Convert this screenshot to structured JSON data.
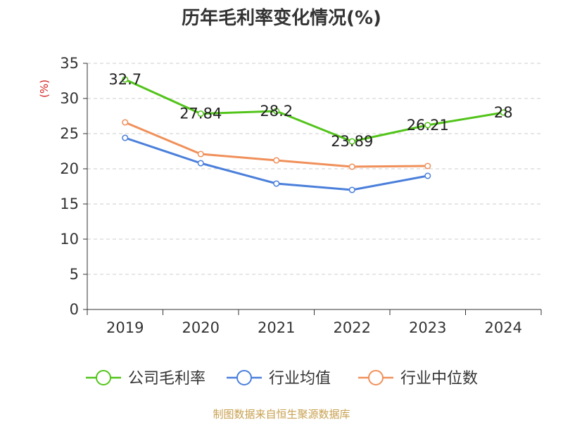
{
  "chart_data": {
    "type": "line",
    "title": "历年毛利率变化情况(%)",
    "ylabel": "(%)",
    "xlabel": "",
    "categories": [
      "2019",
      "2020",
      "2021",
      "2022",
      "2023",
      "2024"
    ],
    "ylim": [
      0,
      35
    ],
    "yticks": [
      0,
      5,
      10,
      15,
      20,
      25,
      30,
      35
    ],
    "grid": true,
    "legend_position": "bottom",
    "series": [
      {
        "name": "公司毛利率",
        "color": "#52c41a",
        "values": [
          32.7,
          27.84,
          28.2,
          23.89,
          26.21,
          28
        ],
        "labels": [
          "32.7",
          "27.84",
          "28.2",
          "23.89",
          "26.21",
          "28"
        ]
      },
      {
        "name": "行业均值",
        "color": "#4a7fdb",
        "values": [
          24.4,
          20.8,
          17.9,
          17.0,
          19.0,
          null
        ]
      },
      {
        "name": "行业中位数",
        "color": "#f0905a",
        "values": [
          26.6,
          22.1,
          21.2,
          20.3,
          20.4,
          null
        ]
      }
    ]
  },
  "source_text": "制图数据来自恒生聚源数据库",
  "colors": {
    "axis": "#333333",
    "grid": "#cccccc",
    "ylabel": "#d42020",
    "source": "#c8a050"
  }
}
